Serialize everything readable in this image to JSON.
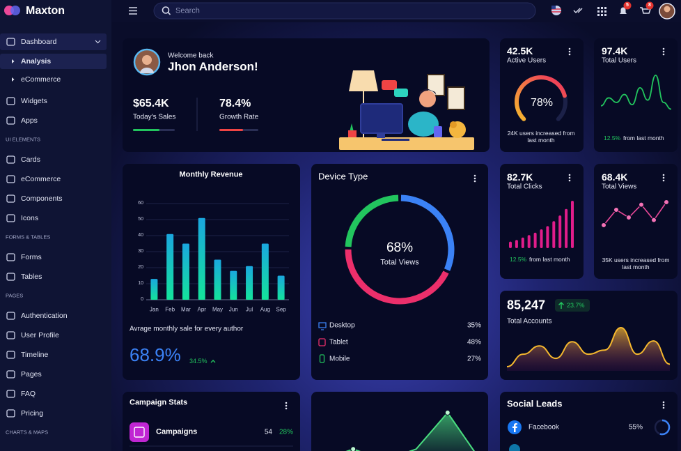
{
  "sidebar": {
    "brand": "Maxton",
    "groups": [
      {
        "items": [
          {
            "label": "Dashboard",
            "children": [
              "Analysis",
              "eCommerce"
            ]
          },
          {
            "label": "Widgets"
          },
          {
            "label": "Apps"
          }
        ]
      },
      {
        "heading": "UI ELEMENTS",
        "items": [
          {
            "label": "Cards"
          },
          {
            "label": "eCommerce"
          },
          {
            "label": "Components"
          },
          {
            "label": "Icons"
          }
        ]
      },
      {
        "heading": "FORMS & TABLES",
        "items": [
          {
            "label": "Forms"
          },
          {
            "label": "Tables"
          }
        ]
      },
      {
        "heading": "PAGES",
        "items": [
          {
            "label": "Authentication"
          },
          {
            "label": "User Profile"
          },
          {
            "label": "Timeline"
          },
          {
            "label": "Pages"
          },
          {
            "label": "FAQ"
          },
          {
            "label": "Pricing"
          }
        ]
      },
      {
        "heading": "CHARTS & MAPS",
        "items": []
      }
    ]
  },
  "topbar": {
    "search_placeholder": "Search",
    "notifications": "5",
    "cart": "8"
  },
  "welcome": {
    "greeting": "Welcome back",
    "name": "Jhon Anderson!",
    "stats": [
      {
        "value": "$65.4K",
        "label": "Today's Sales"
      },
      {
        "value": "78.4%",
        "label": "Growth Rate"
      }
    ]
  },
  "active_users": {
    "value": "42.5K",
    "label": "Active Users",
    "gauge": {
      "type": "gauge",
      "value": 78,
      "value_label": "78%"
    },
    "note": "24K users increased from last month"
  },
  "total_users": {
    "value": "97.4K",
    "label": "Total Users",
    "change": "12.5%",
    "note": "from last month",
    "chart": {
      "type": "line",
      "color": "#22c55e",
      "values": [
        20,
        34,
        26,
        40,
        22,
        52,
        30,
        74,
        26,
        14
      ]
    }
  },
  "monthly_revenue": {
    "chart": {
      "type": "bar",
      "title": "Monthly Revenue",
      "categories": [
        "Jan",
        "Feb",
        "Mar",
        "Apr",
        "May",
        "Jun",
        "Jul",
        "Aug",
        "Sep"
      ],
      "values": [
        13,
        41,
        35,
        51,
        25,
        18,
        21,
        35,
        15
      ],
      "ylim": [
        0,
        60
      ],
      "yticks": [
        0,
        10,
        20,
        30,
        40,
        50,
        60
      ],
      "grid": true
    },
    "caption": "Avrage monthly sale for every author",
    "percent": "68.9%",
    "change": "34.5%"
  },
  "device_type": {
    "title": "Device Type",
    "center_value": "68%",
    "center_label": "Total Views",
    "chart": {
      "type": "donut",
      "categories": [
        "Desktop",
        "Tablet",
        "Mobile"
      ],
      "values": [
        35,
        48,
        27
      ],
      "value_labels": [
        "35%",
        "48%",
        "27%"
      ],
      "colors": [
        "#3b82f6",
        "#ec2f6b",
        "#22c55e"
      ]
    }
  },
  "total_clicks": {
    "value": "82.7K",
    "label": "Total Clicks",
    "change": "12.5%",
    "note": "from last month",
    "chart": {
      "type": "bar",
      "color": "#e11d8a",
      "values": [
        8,
        10,
        13,
        16,
        19,
        23,
        27,
        33,
        40,
        48,
        58
      ]
    }
  },
  "total_views": {
    "value": "68.4K",
    "label": "Total Views",
    "note": "35K users increased from last month",
    "chart": {
      "type": "line",
      "color": "#ec4899",
      "values": [
        30,
        60,
        45,
        70,
        40,
        75
      ]
    }
  },
  "total_accounts": {
    "value": "85,247",
    "change": "23.7%",
    "label": "Total Accounts",
    "chart": {
      "type": "area",
      "color": "#f5b82e",
      "values": [
        5,
        20,
        30,
        15,
        35,
        20,
        25,
        52,
        20,
        36,
        8
      ]
    }
  },
  "campaign_stats": {
    "title": "Campaign Stats",
    "rows": [
      {
        "name": "Campaigns",
        "count": "54",
        "percent": "28%"
      }
    ]
  },
  "growth_chart": {
    "type": "area",
    "color": "#4ade80",
    "values": [
      0,
      12,
      0,
      12,
      52,
      2
    ]
  },
  "social_leads": {
    "title": "Social Leads",
    "rows": [
      {
        "name": "Facebook",
        "value": 55,
        "value_label": "55%"
      }
    ]
  }
}
